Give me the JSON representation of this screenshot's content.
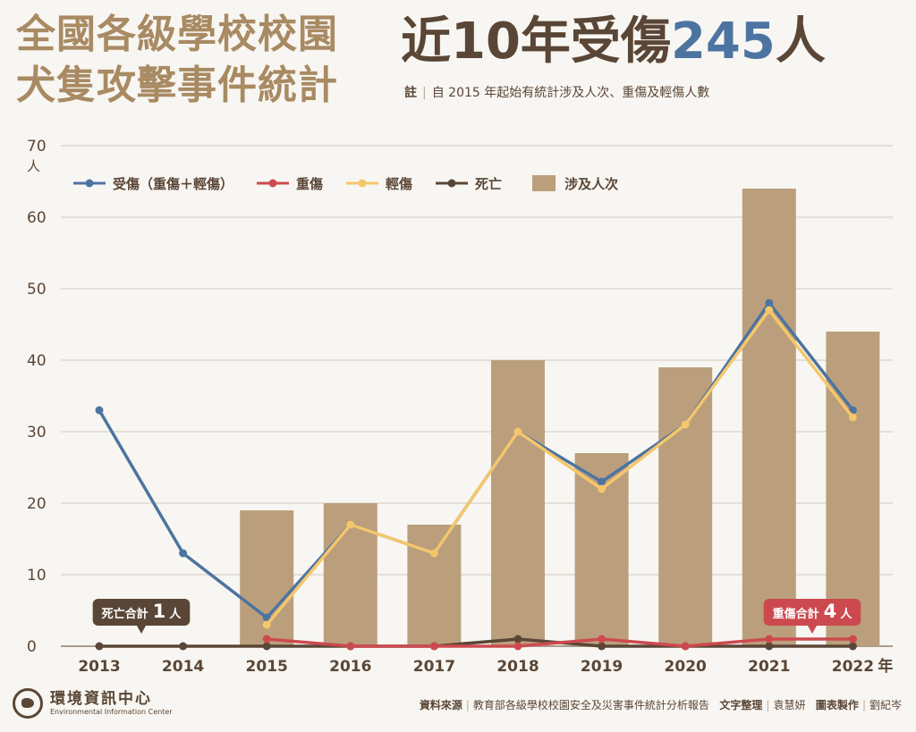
{
  "header": {
    "title_line1": "全國各級學校校園",
    "title_line2": "犬隻攻擊事件統計",
    "headline_prefix": "近10年受傷",
    "headline_number": "245",
    "headline_suffix": "人",
    "note_label": "註",
    "note_text": "自 2015 年起始有統計涉及人次、重傷及輕傷人數"
  },
  "chart_data": {
    "type": "bar",
    "categories": [
      "2013",
      "2014",
      "2015",
      "2016",
      "2017",
      "2018",
      "2019",
      "2020",
      "2021",
      "2022"
    ],
    "xunit": "年",
    "ylabel": "人",
    "ylim": [
      0,
      70
    ],
    "yticks": [
      0,
      10,
      20,
      30,
      40,
      50,
      60,
      70
    ],
    "grid": true,
    "legend_position": "top-left",
    "series": [
      {
        "name": "受傷（重傷＋輕傷）",
        "kind": "line",
        "color": "#4d74a0",
        "values": [
          33,
          13,
          4,
          17,
          13,
          30,
          23,
          31,
          48,
          33
        ]
      },
      {
        "name": "重傷",
        "kind": "line",
        "color": "#cc4a4f",
        "values": [
          null,
          null,
          1,
          0,
          0,
          0,
          1,
          0,
          1,
          1
        ]
      },
      {
        "name": "輕傷",
        "kind": "line",
        "color": "#f6c66b",
        "values": [
          null,
          null,
          3,
          17,
          13,
          30,
          22,
          31,
          47,
          32
        ]
      },
      {
        "name": "死亡",
        "kind": "line",
        "color": "#5a4636",
        "values": [
          0,
          0,
          0,
          0,
          0,
          1,
          0,
          0,
          0,
          0
        ]
      },
      {
        "name": "涉及人次",
        "kind": "bar",
        "color": "#bb9f7c",
        "values": [
          null,
          null,
          19,
          20,
          17,
          40,
          27,
          39,
          64,
          44
        ]
      }
    ],
    "annotations": [
      {
        "label": "死亡合計",
        "number": "1",
        "unit": "人",
        "color": "#5a4636",
        "category": "2013"
      },
      {
        "label": "重傷合計",
        "number": "4",
        "unit": "人",
        "color": "#cc4a4f",
        "category": "2021"
      }
    ]
  },
  "footer": {
    "org_name_zh": "環境資訊中心",
    "org_name_en": "Environmental Information Center",
    "source_label": "資料來源",
    "source_text": "教育部各級學校校園安全及災害事件統計分析報告",
    "editor_label": "文字整理",
    "editor_name": "袁慧妍",
    "designer_label": "圖表製作",
    "designer_name": "劉紀岑"
  }
}
